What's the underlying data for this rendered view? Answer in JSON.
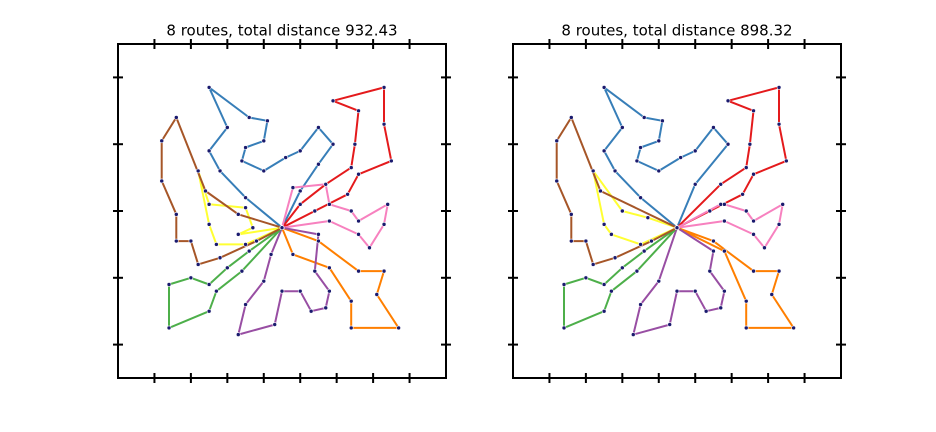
{
  "chart_data": [
    {
      "type": "line",
      "title": "8 routes, total distance 932.43",
      "xlim": [
        0,
        90
      ],
      "ylim": [
        0,
        100
      ],
      "xticks": [
        10,
        20,
        30,
        40,
        50,
        60,
        70,
        80
      ],
      "yticks": [
        10,
        30,
        50,
        70,
        90
      ],
      "marker_color": "#1a1a6e",
      "series": [
        {
          "color": "#377eb8",
          "x": [
            45,
            35,
            28,
            25,
            30,
            25,
            36,
            41,
            40,
            35,
            34,
            40,
            46,
            50,
            55,
            59,
            55,
            50,
            45
          ],
          "y": [
            45,
            54,
            62,
            68,
            75,
            87,
            78,
            77,
            71,
            69,
            65,
            62,
            66,
            68,
            75,
            70,
            64,
            56,
            45
          ]
        },
        {
          "color": "#e41a1c",
          "x": [
            45,
            54,
            63,
            66,
            75,
            73,
            73,
            59,
            66,
            65,
            64,
            57,
            50,
            45
          ],
          "y": [
            45,
            50,
            55,
            61,
            65,
            76,
            87,
            83,
            80,
            70,
            63,
            58,
            52,
            45
          ]
        },
        {
          "color": "#f781bf",
          "x": [
            45,
            48,
            57,
            58,
            64,
            66,
            74,
            73,
            69,
            66,
            58,
            45
          ],
          "y": [
            45,
            57,
            58,
            52,
            50,
            47,
            52,
            46,
            39,
            43,
            47,
            45
          ]
        },
        {
          "color": "#ff7f00",
          "x": [
            45,
            48,
            58,
            64,
            64,
            77,
            71,
            73,
            66,
            55,
            45
          ],
          "y": [
            45,
            37,
            33,
            23,
            15,
            15,
            25,
            32,
            32,
            41,
            45
          ]
        },
        {
          "color": "#984ea3",
          "x": [
            45,
            55,
            54,
            58,
            57,
            53,
            50,
            45,
            43,
            33,
            35,
            40,
            42,
            45
          ],
          "y": [
            45,
            43,
            32,
            26,
            21,
            20,
            26,
            26,
            16,
            13,
            22,
            29,
            37,
            45
          ]
        },
        {
          "color": "#4daf4a",
          "x": [
            45,
            36,
            30,
            25,
            20,
            14,
            14,
            25,
            27,
            34,
            45
          ],
          "y": [
            45,
            38,
            33,
            28,
            30,
            28,
            15,
            20,
            26,
            32,
            45
          ]
        },
        {
          "color": "#ffff33",
          "x": [
            45,
            35,
            27,
            25,
            22,
            25,
            35,
            37,
            33,
            45
          ],
          "y": [
            45,
            40,
            40,
            46,
            62,
            52,
            51,
            45,
            43,
            45
          ]
        },
        {
          "color": "#a65628",
          "x": [
            45,
            33,
            24,
            16,
            12,
            12,
            16,
            16,
            20,
            22,
            28,
            38,
            45
          ],
          "y": [
            45,
            49,
            56,
            78,
            71,
            59,
            49,
            41,
            41,
            34,
            36,
            41,
            45
          ]
        }
      ]
    },
    {
      "type": "line",
      "title": "8 routes, total distance 898.32",
      "xlim": [
        0,
        90
      ],
      "ylim": [
        0,
        100
      ],
      "xticks": [
        10,
        20,
        30,
        40,
        50,
        60,
        70,
        80
      ],
      "yticks": [
        10,
        30,
        50,
        70,
        90
      ],
      "marker_color": "#1a1a6e",
      "series": [
        {
          "color": "#377eb8",
          "x": [
            45,
            35,
            28,
            25,
            30,
            25,
            36,
            41,
            40,
            35,
            34,
            40,
            46,
            50,
            55,
            59,
            50,
            45
          ],
          "y": [
            45,
            54,
            62,
            68,
            75,
            87,
            78,
            77,
            71,
            69,
            65,
            62,
            66,
            68,
            75,
            70,
            58,
            45
          ]
        },
        {
          "color": "#e41a1c",
          "x": [
            45,
            54,
            63,
            66,
            75,
            73,
            73,
            59,
            66,
            65,
            64,
            57,
            45
          ],
          "y": [
            45,
            50,
            55,
            61,
            65,
            76,
            87,
            83,
            80,
            70,
            63,
            58,
            45
          ]
        },
        {
          "color": "#f781bf",
          "x": [
            45,
            57,
            58,
            64,
            66,
            74,
            73,
            69,
            66,
            58,
            45
          ],
          "y": [
            45,
            52,
            52,
            50,
            47,
            52,
            46,
            39,
            43,
            47,
            45
          ]
        },
        {
          "color": "#ff7f00",
          "x": [
            45,
            58,
            64,
            64,
            77,
            71,
            73,
            66,
            55,
            45
          ],
          "y": [
            45,
            38,
            23,
            15,
            15,
            25,
            32,
            32,
            41,
            45
          ]
        },
        {
          "color": "#984ea3",
          "x": [
            45,
            55,
            54,
            58,
            57,
            53,
            50,
            45,
            43,
            33,
            35,
            40,
            45
          ],
          "y": [
            45,
            38,
            32,
            26,
            21,
            20,
            26,
            26,
            16,
            13,
            22,
            29,
            45
          ]
        },
        {
          "color": "#4daf4a",
          "x": [
            45,
            36,
            30,
            25,
            20,
            14,
            14,
            25,
            27,
            34,
            45
          ],
          "y": [
            45,
            38,
            33,
            28,
            30,
            28,
            15,
            20,
            26,
            32,
            45
          ]
        },
        {
          "color": "#ffff33",
          "x": [
            45,
            35,
            27,
            25,
            22,
            30,
            37,
            45
          ],
          "y": [
            45,
            40,
            43,
            46,
            62,
            50,
            48,
            45
          ]
        },
        {
          "color": "#a65628",
          "x": [
            45,
            24,
            16,
            12,
            12,
            16,
            16,
            20,
            22,
            28,
            38,
            45
          ],
          "y": [
            45,
            56,
            78,
            71,
            59,
            49,
            41,
            41,
            34,
            36,
            41,
            45
          ]
        }
      ]
    }
  ]
}
